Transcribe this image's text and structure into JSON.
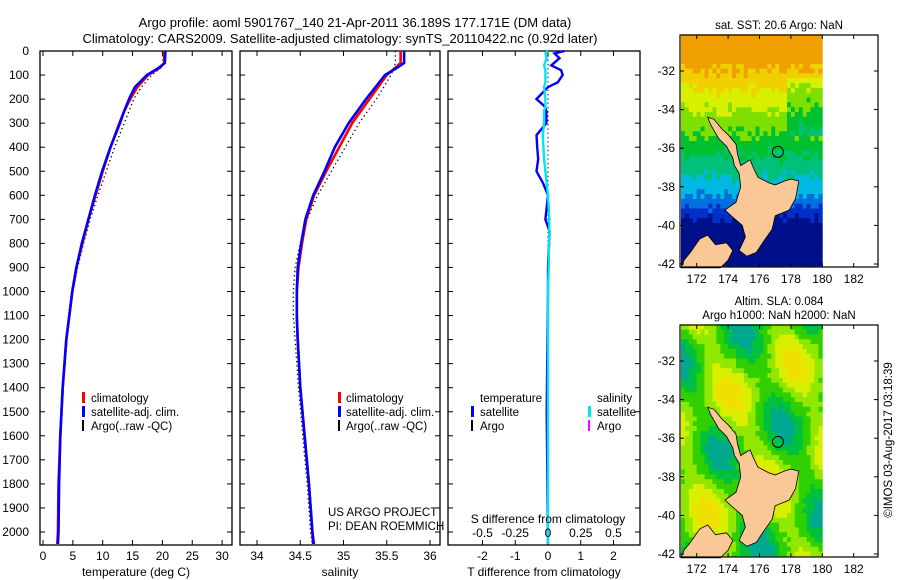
{
  "title": {
    "line1": "Argo profile: aoml 5901767_140 21-Apr-2011 36.189S 177.171E (DM data)",
    "line2": "Climatology: CARS2009. Satellite-adjusted climatology: synTS_20110422.nc (0.92d later)"
  },
  "depth_ticks": [
    "0",
    "100",
    "200",
    "300",
    "400",
    "500",
    "600",
    "700",
    "800",
    "900",
    "1000",
    "1100",
    "1200",
    "1300",
    "1400",
    "1500",
    "1600",
    "1700",
    "1800",
    "1900",
    "2000"
  ],
  "project_note": {
    "line1": "US ARGO PROJECT",
    "line2": "PI: DEAN ROEMMICH"
  },
  "copyright": "©IMOS 03-Aug-2017 03:18:39",
  "colors": {
    "climatology": "#ff0000",
    "satellite": "#0000ff",
    "argo": "#000000",
    "sal_satellite": "#00e5ee",
    "sal_argo": "#ff00ff",
    "land": "#f9c896"
  },
  "chart_data": [
    {
      "type": "line",
      "xlabel": "temperature (deg C)",
      "ylabel": "",
      "xlim": [
        -1,
        31
      ],
      "ylim": [
        2054,
        0
      ],
      "xticks": [
        "0",
        "5",
        "10",
        "15",
        "20",
        "25",
        "30"
      ],
      "xtick_values": [
        0,
        5,
        10,
        15,
        20,
        25,
        30
      ],
      "legend": [
        "climatology",
        "satellite-adj. clim.",
        "Argo(..raw -QC)"
      ],
      "depth": [
        0,
        50,
        70,
        100,
        150,
        200,
        250,
        300,
        400,
        500,
        600,
        700,
        800,
        900,
        1000,
        1200,
        1400,
        1600,
        1800,
        2000,
        2050
      ],
      "series": [
        {
          "name": "climatology",
          "values": [
            20.3,
            20.3,
            19.6,
            17.6,
            15.8,
            14.6,
            13.6,
            12.8,
            11.3,
            10.0,
            8.8,
            7.6,
            6.6,
            5.6,
            4.9,
            3.9,
            3.3,
            2.9,
            2.6,
            2.5,
            2.4
          ]
        },
        {
          "name": "satellite-adj. clim.",
          "values": [
            20.5,
            20.4,
            19.4,
            17.4,
            15.4,
            14.4,
            13.6,
            12.9,
            11.3,
            9.9,
            8.7,
            7.6,
            6.5,
            5.6,
            4.9,
            3.9,
            3.3,
            2.9,
            2.7,
            2.6,
            2.5
          ]
        },
        {
          "name": "Argo(..raw -QC)",
          "values": [
            20.1,
            20.1,
            19.8,
            18.2,
            16.5,
            15.2,
            14.4,
            13.6,
            12.0,
            10.6,
            9.2,
            7.9,
            6.8,
            5.8,
            5.0,
            4.0,
            3.3,
            2.9,
            2.7,
            2.6,
            2.5
          ]
        }
      ]
    },
    {
      "type": "line",
      "xlabel": "salinity",
      "xlim": [
        33.8,
        36.05
      ],
      "ylim": [
        2054,
        0
      ],
      "xticks": [
        "34",
        "34.5",
        "35",
        "35.5",
        "36"
      ],
      "xtick_values": [
        34,
        34.5,
        35,
        35.5,
        36
      ],
      "legend": [
        "climatology",
        "satellite-adj. clim.",
        "Argo(..raw -QC)"
      ],
      "depth": [
        0,
        50,
        70,
        100,
        200,
        300,
        400,
        500,
        600,
        700,
        800,
        900,
        1000,
        1100,
        1200,
        1400,
        1600,
        1800,
        2000,
        2050
      ],
      "series": [
        {
          "name": "climatology",
          "values": [
            35.66,
            35.66,
            35.6,
            35.5,
            35.3,
            35.1,
            34.95,
            34.8,
            34.66,
            34.57,
            34.52,
            34.48,
            34.46,
            34.46,
            34.47,
            34.5,
            34.55,
            34.6,
            34.64,
            34.66
          ]
        },
        {
          "name": "satellite-adj. clim.",
          "values": [
            35.7,
            35.7,
            35.62,
            35.48,
            35.26,
            35.06,
            34.9,
            34.78,
            34.65,
            34.56,
            34.51,
            34.47,
            34.46,
            34.46,
            34.47,
            34.5,
            34.55,
            34.6,
            34.64,
            34.65
          ]
        },
        {
          "name": "Argo(..raw -QC)",
          "values": [
            35.6,
            35.6,
            35.58,
            35.55,
            35.38,
            35.18,
            35.02,
            34.86,
            34.7,
            34.58,
            34.5,
            34.44,
            34.42,
            34.42,
            34.44,
            34.48,
            34.53,
            34.58,
            34.62,
            34.64
          ]
        }
      ]
    },
    {
      "type": "line",
      "xlabel": "T difference from climatology",
      "xlabel_top": "S difference from climatology",
      "xlim": [
        -3.06,
        2.8
      ],
      "ylim": [
        2054,
        0
      ],
      "xticks": [
        "-2",
        "-1",
        "0",
        "1",
        "2"
      ],
      "xtick_values": [
        -2,
        -1,
        0,
        1,
        2
      ],
      "s_ticks": [
        "-0.5",
        "-0.25",
        "0",
        "0.25",
        "0.5"
      ],
      "s_tick_values": [
        -0.5,
        -0.25,
        0,
        0.25,
        0.5
      ],
      "legend_headers": [
        "temperature",
        "salinity"
      ],
      "legend": [
        "satellite",
        "Argo",
        "satellite",
        "Argo"
      ],
      "depth": [
        0,
        10,
        30,
        60,
        80,
        100,
        130,
        150,
        200,
        230,
        250,
        300,
        350,
        400,
        450,
        500,
        550,
        600,
        700,
        750,
        900,
        1000,
        1500,
        2050
      ],
      "series": [
        {
          "name": "temperature satellite",
          "values": [
            0.5,
            0.2,
            0.35,
            0.1,
            0.4,
            0.45,
            0.3,
            0.0,
            -0.35,
            -0.1,
            -0.05,
            -0.05,
            -0.35,
            -0.33,
            -0.3,
            -0.35,
            -0.15,
            0.0,
            -0.08,
            0.05,
            0.0,
            0.0,
            -0.04,
            0.0
          ]
        },
        {
          "name": "salinity satellite",
          "values": [
            0.0,
            -0.02,
            -0.01,
            -0.03,
            -0.02,
            -0.02,
            -0.02,
            -0.03,
            -0.02,
            -0.02,
            -0.03,
            -0.03,
            -0.04,
            -0.035,
            -0.03,
            -0.02,
            -0.01,
            0.0,
            0.01,
            0.01,
            0.005,
            0.0,
            0.0,
            0.0
          ]
        }
      ]
    }
  ],
  "maps": [
    {
      "title_lines": [
        "sat. SST: 20.6  Argo: NaN"
      ],
      "lat_ticks": [
        "-32",
        "-34",
        "-36",
        "-38",
        "-40",
        "-42"
      ],
      "lon_ticks": [
        "172",
        "174",
        "176",
        "178",
        "180",
        "182"
      ],
      "float_position": {
        "lat": -36.189,
        "lon": 177.171
      }
    },
    {
      "title_lines": [
        "Altim. SLA: 0.084",
        "Argo h1000: NaN h2000: NaN"
      ],
      "lat_ticks": [
        "-32",
        "-34",
        "-36",
        "-38",
        "-40",
        "-42"
      ],
      "lon_ticks": [
        "172",
        "174",
        "176",
        "178",
        "180",
        "182"
      ],
      "float_position": {
        "lat": -36.189,
        "lon": 177.171
      }
    }
  ]
}
